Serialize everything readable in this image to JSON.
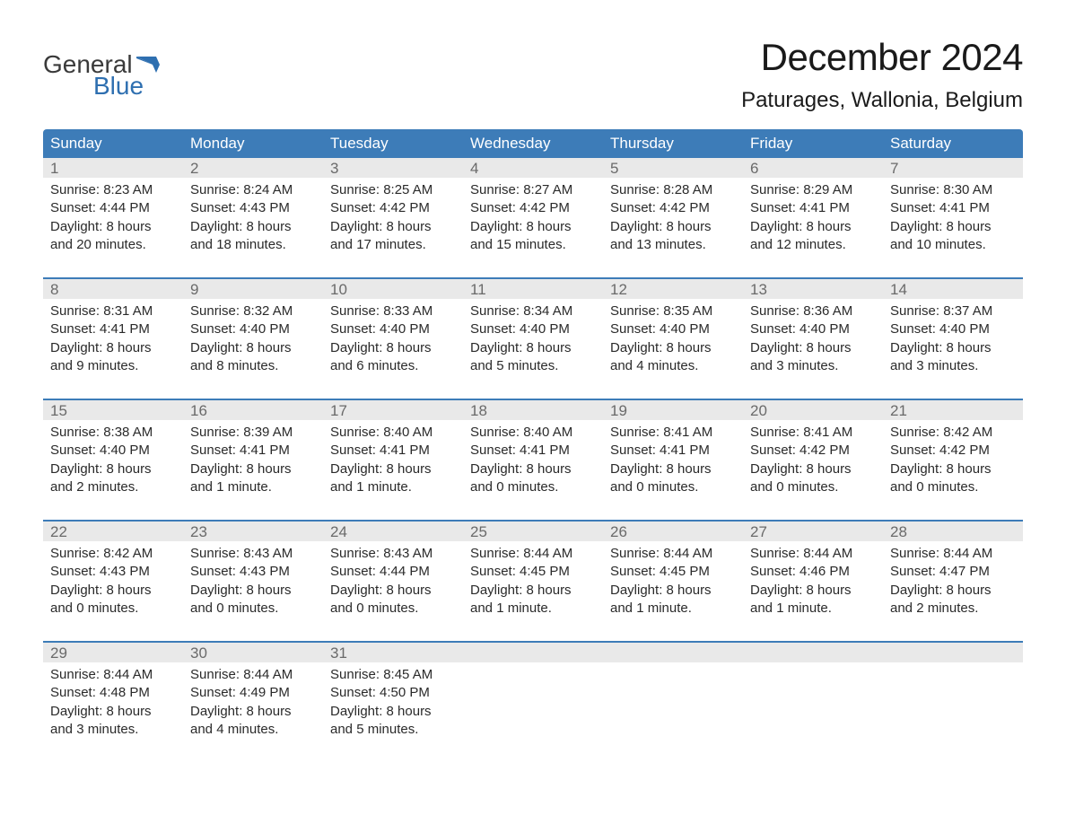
{
  "logo": {
    "word1": "General",
    "word2": "Blue",
    "word1_color": "#3a3a3a",
    "word2_color": "#2e6fb0",
    "flag_color": "#2e6fb0"
  },
  "header": {
    "month_title": "December 2024",
    "location": "Paturages, Wallonia, Belgium"
  },
  "colors": {
    "header_bg": "#3d7cb8",
    "header_text": "#ffffff",
    "daynum_bg": "#e9e9e9",
    "daynum_text": "#6a6a6a",
    "body_text": "#2a2a2a",
    "rule": "#3d7cb8",
    "page_bg": "#ffffff"
  },
  "weekdays": [
    "Sunday",
    "Monday",
    "Tuesday",
    "Wednesday",
    "Thursday",
    "Friday",
    "Saturday"
  ],
  "weeks": [
    [
      {
        "n": "1",
        "sunrise": "Sunrise: 8:23 AM",
        "sunset": "Sunset: 4:44 PM",
        "day1": "Daylight: 8 hours",
        "day2": "and 20 minutes."
      },
      {
        "n": "2",
        "sunrise": "Sunrise: 8:24 AM",
        "sunset": "Sunset: 4:43 PM",
        "day1": "Daylight: 8 hours",
        "day2": "and 18 minutes."
      },
      {
        "n": "3",
        "sunrise": "Sunrise: 8:25 AM",
        "sunset": "Sunset: 4:42 PM",
        "day1": "Daylight: 8 hours",
        "day2": "and 17 minutes."
      },
      {
        "n": "4",
        "sunrise": "Sunrise: 8:27 AM",
        "sunset": "Sunset: 4:42 PM",
        "day1": "Daylight: 8 hours",
        "day2": "and 15 minutes."
      },
      {
        "n": "5",
        "sunrise": "Sunrise: 8:28 AM",
        "sunset": "Sunset: 4:42 PM",
        "day1": "Daylight: 8 hours",
        "day2": "and 13 minutes."
      },
      {
        "n": "6",
        "sunrise": "Sunrise: 8:29 AM",
        "sunset": "Sunset: 4:41 PM",
        "day1": "Daylight: 8 hours",
        "day2": "and 12 minutes."
      },
      {
        "n": "7",
        "sunrise": "Sunrise: 8:30 AM",
        "sunset": "Sunset: 4:41 PM",
        "day1": "Daylight: 8 hours",
        "day2": "and 10 minutes."
      }
    ],
    [
      {
        "n": "8",
        "sunrise": "Sunrise: 8:31 AM",
        "sunset": "Sunset: 4:41 PM",
        "day1": "Daylight: 8 hours",
        "day2": "and 9 minutes."
      },
      {
        "n": "9",
        "sunrise": "Sunrise: 8:32 AM",
        "sunset": "Sunset: 4:40 PM",
        "day1": "Daylight: 8 hours",
        "day2": "and 8 minutes."
      },
      {
        "n": "10",
        "sunrise": "Sunrise: 8:33 AM",
        "sunset": "Sunset: 4:40 PM",
        "day1": "Daylight: 8 hours",
        "day2": "and 6 minutes."
      },
      {
        "n": "11",
        "sunrise": "Sunrise: 8:34 AM",
        "sunset": "Sunset: 4:40 PM",
        "day1": "Daylight: 8 hours",
        "day2": "and 5 minutes."
      },
      {
        "n": "12",
        "sunrise": "Sunrise: 8:35 AM",
        "sunset": "Sunset: 4:40 PM",
        "day1": "Daylight: 8 hours",
        "day2": "and 4 minutes."
      },
      {
        "n": "13",
        "sunrise": "Sunrise: 8:36 AM",
        "sunset": "Sunset: 4:40 PM",
        "day1": "Daylight: 8 hours",
        "day2": "and 3 minutes."
      },
      {
        "n": "14",
        "sunrise": "Sunrise: 8:37 AM",
        "sunset": "Sunset: 4:40 PM",
        "day1": "Daylight: 8 hours",
        "day2": "and 3 minutes."
      }
    ],
    [
      {
        "n": "15",
        "sunrise": "Sunrise: 8:38 AM",
        "sunset": "Sunset: 4:40 PM",
        "day1": "Daylight: 8 hours",
        "day2": "and 2 minutes."
      },
      {
        "n": "16",
        "sunrise": "Sunrise: 8:39 AM",
        "sunset": "Sunset: 4:41 PM",
        "day1": "Daylight: 8 hours",
        "day2": "and 1 minute."
      },
      {
        "n": "17",
        "sunrise": "Sunrise: 8:40 AM",
        "sunset": "Sunset: 4:41 PM",
        "day1": "Daylight: 8 hours",
        "day2": "and 1 minute."
      },
      {
        "n": "18",
        "sunrise": "Sunrise: 8:40 AM",
        "sunset": "Sunset: 4:41 PM",
        "day1": "Daylight: 8 hours",
        "day2": "and 0 minutes."
      },
      {
        "n": "19",
        "sunrise": "Sunrise: 8:41 AM",
        "sunset": "Sunset: 4:41 PM",
        "day1": "Daylight: 8 hours",
        "day2": "and 0 minutes."
      },
      {
        "n": "20",
        "sunrise": "Sunrise: 8:41 AM",
        "sunset": "Sunset: 4:42 PM",
        "day1": "Daylight: 8 hours",
        "day2": "and 0 minutes."
      },
      {
        "n": "21",
        "sunrise": "Sunrise: 8:42 AM",
        "sunset": "Sunset: 4:42 PM",
        "day1": "Daylight: 8 hours",
        "day2": "and 0 minutes."
      }
    ],
    [
      {
        "n": "22",
        "sunrise": "Sunrise: 8:42 AM",
        "sunset": "Sunset: 4:43 PM",
        "day1": "Daylight: 8 hours",
        "day2": "and 0 minutes."
      },
      {
        "n": "23",
        "sunrise": "Sunrise: 8:43 AM",
        "sunset": "Sunset: 4:43 PM",
        "day1": "Daylight: 8 hours",
        "day2": "and 0 minutes."
      },
      {
        "n": "24",
        "sunrise": "Sunrise: 8:43 AM",
        "sunset": "Sunset: 4:44 PM",
        "day1": "Daylight: 8 hours",
        "day2": "and 0 minutes."
      },
      {
        "n": "25",
        "sunrise": "Sunrise: 8:44 AM",
        "sunset": "Sunset: 4:45 PM",
        "day1": "Daylight: 8 hours",
        "day2": "and 1 minute."
      },
      {
        "n": "26",
        "sunrise": "Sunrise: 8:44 AM",
        "sunset": "Sunset: 4:45 PM",
        "day1": "Daylight: 8 hours",
        "day2": "and 1 minute."
      },
      {
        "n": "27",
        "sunrise": "Sunrise: 8:44 AM",
        "sunset": "Sunset: 4:46 PM",
        "day1": "Daylight: 8 hours",
        "day2": "and 1 minute."
      },
      {
        "n": "28",
        "sunrise": "Sunrise: 8:44 AM",
        "sunset": "Sunset: 4:47 PM",
        "day1": "Daylight: 8 hours",
        "day2": "and 2 minutes."
      }
    ],
    [
      {
        "n": "29",
        "sunrise": "Sunrise: 8:44 AM",
        "sunset": "Sunset: 4:48 PM",
        "day1": "Daylight: 8 hours",
        "day2": "and 3 minutes."
      },
      {
        "n": "30",
        "sunrise": "Sunrise: 8:44 AM",
        "sunset": "Sunset: 4:49 PM",
        "day1": "Daylight: 8 hours",
        "day2": "and 4 minutes."
      },
      {
        "n": "31",
        "sunrise": "Sunrise: 8:45 AM",
        "sunset": "Sunset: 4:50 PM",
        "day1": "Daylight: 8 hours",
        "day2": "and 5 minutes."
      },
      null,
      null,
      null,
      null
    ]
  ]
}
